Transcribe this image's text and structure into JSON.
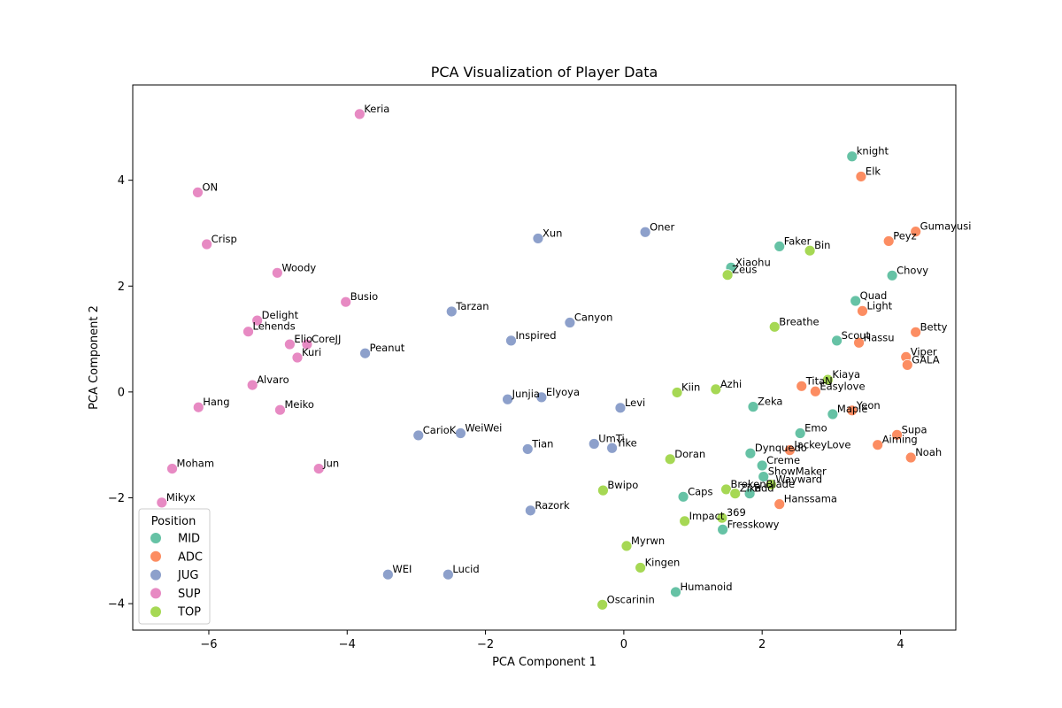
{
  "chart_data": {
    "type": "scatter",
    "title": "PCA Visualization of Player Data",
    "xlabel": "PCA Component 1",
    "ylabel": "PCA Component 2",
    "xlim": [
      -7.1,
      4.8
    ],
    "ylim": [
      -4.5,
      5.8
    ],
    "xticks": [
      -6,
      -4,
      -2,
      0,
      2,
      4
    ],
    "yticks": [
      -4,
      -2,
      0,
      2,
      4
    ],
    "grid": false,
    "legend": {
      "title": "Position",
      "placement": "lower-left",
      "entries": [
        {
          "name": "MID",
          "color": "#66c2a5"
        },
        {
          "name": "ADC",
          "color": "#fc8d62"
        },
        {
          "name": "JUG",
          "color": "#8da0cb"
        },
        {
          "name": "SUP",
          "color": "#e78ac3"
        },
        {
          "name": "TOP",
          "color": "#a6d854"
        }
      ]
    },
    "points": [
      {
        "name": "knight",
        "position": "MID",
        "x": 3.3,
        "y": 4.45
      },
      {
        "name": "Faker",
        "position": "MID",
        "x": 2.25,
        "y": 2.75
      },
      {
        "name": "Xiaohu",
        "position": "MID",
        "x": 1.55,
        "y": 2.35
      },
      {
        "name": "Chovy",
        "position": "MID",
        "x": 3.88,
        "y": 2.2
      },
      {
        "name": "Quad",
        "position": "MID",
        "x": 3.35,
        "y": 1.72
      },
      {
        "name": "Scout",
        "position": "MID",
        "x": 3.08,
        "y": 0.97
      },
      {
        "name": "Zeka",
        "position": "MID",
        "x": 1.87,
        "y": -0.28
      },
      {
        "name": "Maple",
        "position": "MID",
        "x": 3.02,
        "y": -0.42
      },
      {
        "name": "Emo",
        "position": "MID",
        "x": 2.55,
        "y": -0.78
      },
      {
        "name": "Dynquedo",
        "position": "MID",
        "x": 1.83,
        "y": -1.16
      },
      {
        "name": "Creme",
        "position": "MID",
        "x": 2.0,
        "y": -1.39
      },
      {
        "name": "ShowMaker",
        "position": "MID",
        "x": 2.02,
        "y": -1.6
      },
      {
        "name": "Bdd",
        "position": "MID",
        "x": 1.82,
        "y": -1.92
      },
      {
        "name": "Caps",
        "position": "MID",
        "x": 0.86,
        "y": -1.98
      },
      {
        "name": "Fresskowy",
        "position": "MID",
        "x": 1.43,
        "y": -2.6
      },
      {
        "name": "Humanoid",
        "position": "MID",
        "x": 0.75,
        "y": -3.78
      },
      {
        "name": "Elk",
        "position": "ADC",
        "x": 3.43,
        "y": 4.07
      },
      {
        "name": "Gumayusi",
        "position": "ADC",
        "x": 4.22,
        "y": 3.03
      },
      {
        "name": "Peyz",
        "position": "ADC",
        "x": 3.83,
        "y": 2.85
      },
      {
        "name": "Light",
        "position": "ADC",
        "x": 3.45,
        "y": 1.53
      },
      {
        "name": "Betty",
        "position": "ADC",
        "x": 4.22,
        "y": 1.13
      },
      {
        "name": "Hassu",
        "position": "ADC",
        "x": 3.4,
        "y": 0.93
      },
      {
        "name": "Viper",
        "position": "ADC",
        "x": 4.08,
        "y": 0.66
      },
      {
        "name": "GALA",
        "position": "ADC",
        "x": 4.1,
        "y": 0.51
      },
      {
        "name": "TitaN",
        "position": "ADC",
        "x": 2.57,
        "y": 0.11
      },
      {
        "name": "Easylove",
        "position": "ADC",
        "x": 2.77,
        "y": 0.01
      },
      {
        "name": "Yeon",
        "position": "ADC",
        "x": 3.3,
        "y": -0.35
      },
      {
        "name": "Supa",
        "position": "ADC",
        "x": 3.95,
        "y": -0.81
      },
      {
        "name": "Aiming",
        "position": "ADC",
        "x": 3.67,
        "y": -1.0
      },
      {
        "name": "JackeyLove",
        "position": "ADC",
        "x": 2.4,
        "y": -1.1
      },
      {
        "name": "Noah",
        "position": "ADC",
        "x": 4.15,
        "y": -1.24
      },
      {
        "name": "Hanssama",
        "position": "ADC",
        "x": 2.25,
        "y": -2.12
      },
      {
        "name": "Xun",
        "position": "JUG",
        "x": -1.24,
        "y": 2.9
      },
      {
        "name": "Oner",
        "position": "JUG",
        "x": 0.31,
        "y": 3.02
      },
      {
        "name": "Tarzan",
        "position": "JUG",
        "x": -2.49,
        "y": 1.52
      },
      {
        "name": "Canyon",
        "position": "JUG",
        "x": -0.78,
        "y": 1.31
      },
      {
        "name": "Inspired",
        "position": "JUG",
        "x": -1.63,
        "y": 0.97
      },
      {
        "name": "Peanut",
        "position": "JUG",
        "x": -3.74,
        "y": 0.73
      },
      {
        "name": "Junjia",
        "position": "JUG",
        "x": -1.68,
        "y": -0.14
      },
      {
        "name": "Elyoya",
        "position": "JUG",
        "x": -1.19,
        "y": -0.1
      },
      {
        "name": "Levi",
        "position": "JUG",
        "x": -0.05,
        "y": -0.3
      },
      {
        "name": "CarioK",
        "position": "JUG",
        "x": -2.97,
        "y": -0.82
      },
      {
        "name": "WeiWei",
        "position": "JUG",
        "x": -2.36,
        "y": -0.78
      },
      {
        "name": "Tian",
        "position": "JUG",
        "x": -1.39,
        "y": -1.08
      },
      {
        "name": "UmTi",
        "position": "JUG",
        "x": -0.43,
        "y": -0.98
      },
      {
        "name": "Yike",
        "position": "JUG",
        "x": -0.17,
        "y": -1.06
      },
      {
        "name": "Razork",
        "position": "JUG",
        "x": -1.35,
        "y": -2.24
      },
      {
        "name": "WEI",
        "position": "JUG",
        "x": -3.41,
        "y": -3.45
      },
      {
        "name": "Lucid",
        "position": "JUG",
        "x": -2.54,
        "y": -3.45
      },
      {
        "name": "Keria",
        "position": "SUP",
        "x": -3.82,
        "y": 5.25
      },
      {
        "name": "ON",
        "position": "SUP",
        "x": -6.16,
        "y": 3.77
      },
      {
        "name": "Crisp",
        "position": "SUP",
        "x": -6.03,
        "y": 2.79
      },
      {
        "name": "Woody",
        "position": "SUP",
        "x": -5.01,
        "y": 2.25
      },
      {
        "name": "Busio",
        "position": "SUP",
        "x": -4.02,
        "y": 1.7
      },
      {
        "name": "Delight",
        "position": "SUP",
        "x": -5.3,
        "y": 1.35
      },
      {
        "name": "Lehends",
        "position": "SUP",
        "x": -5.43,
        "y": 1.14
      },
      {
        "name": "Elio",
        "position": "SUP",
        "x": -4.83,
        "y": 0.9
      },
      {
        "name": "CoreJJ",
        "position": "SUP",
        "x": -4.58,
        "y": 0.9
      },
      {
        "name": "Kuri",
        "position": "SUP",
        "x": -4.72,
        "y": 0.65
      },
      {
        "name": "Alvaro",
        "position": "SUP",
        "x": -5.37,
        "y": 0.13
      },
      {
        "name": "Hang",
        "position": "SUP",
        "x": -6.15,
        "y": -0.29
      },
      {
        "name": "Meiko",
        "position": "SUP",
        "x": -4.97,
        "y": -0.34
      },
      {
        "name": "Moham",
        "position": "SUP",
        "x": -6.53,
        "y": -1.45
      },
      {
        "name": "Jun",
        "position": "SUP",
        "x": -4.41,
        "y": -1.45
      },
      {
        "name": "Mikyx",
        "position": "SUP",
        "x": -6.68,
        "y": -2.09
      },
      {
        "name": "Bin",
        "position": "TOP",
        "x": 2.69,
        "y": 2.67
      },
      {
        "name": "Zeus",
        "position": "TOP",
        "x": 1.5,
        "y": 2.21
      },
      {
        "name": "Breathe",
        "position": "TOP",
        "x": 2.18,
        "y": 1.23
      },
      {
        "name": "Kiaya",
        "position": "TOP",
        "x": 2.95,
        "y": 0.23
      },
      {
        "name": "Kiin",
        "position": "TOP",
        "x": 0.77,
        "y": -0.01
      },
      {
        "name": "Azhi",
        "position": "TOP",
        "x": 1.33,
        "y": 0.05
      },
      {
        "name": "Doran",
        "position": "TOP",
        "x": 0.67,
        "y": -1.27
      },
      {
        "name": "Bwipo",
        "position": "TOP",
        "x": -0.3,
        "y": -1.86
      },
      {
        "name": "BrokenBlade",
        "position": "TOP",
        "x": 1.48,
        "y": -1.84
      },
      {
        "name": "Wayward",
        "position": "TOP",
        "x": 2.13,
        "y": -1.75
      },
      {
        "name": "Zika",
        "position": "TOP",
        "x": 1.61,
        "y": -1.92
      },
      {
        "name": "369",
        "position": "TOP",
        "x": 1.42,
        "y": -2.38
      },
      {
        "name": "Impact",
        "position": "TOP",
        "x": 0.88,
        "y": -2.44
      },
      {
        "name": "Myrwn",
        "position": "TOP",
        "x": 0.04,
        "y": -2.91
      },
      {
        "name": "Kingen",
        "position": "TOP",
        "x": 0.24,
        "y": -3.32
      },
      {
        "name": "Oscarinin",
        "position": "TOP",
        "x": -0.31,
        "y": -4.02
      }
    ]
  }
}
